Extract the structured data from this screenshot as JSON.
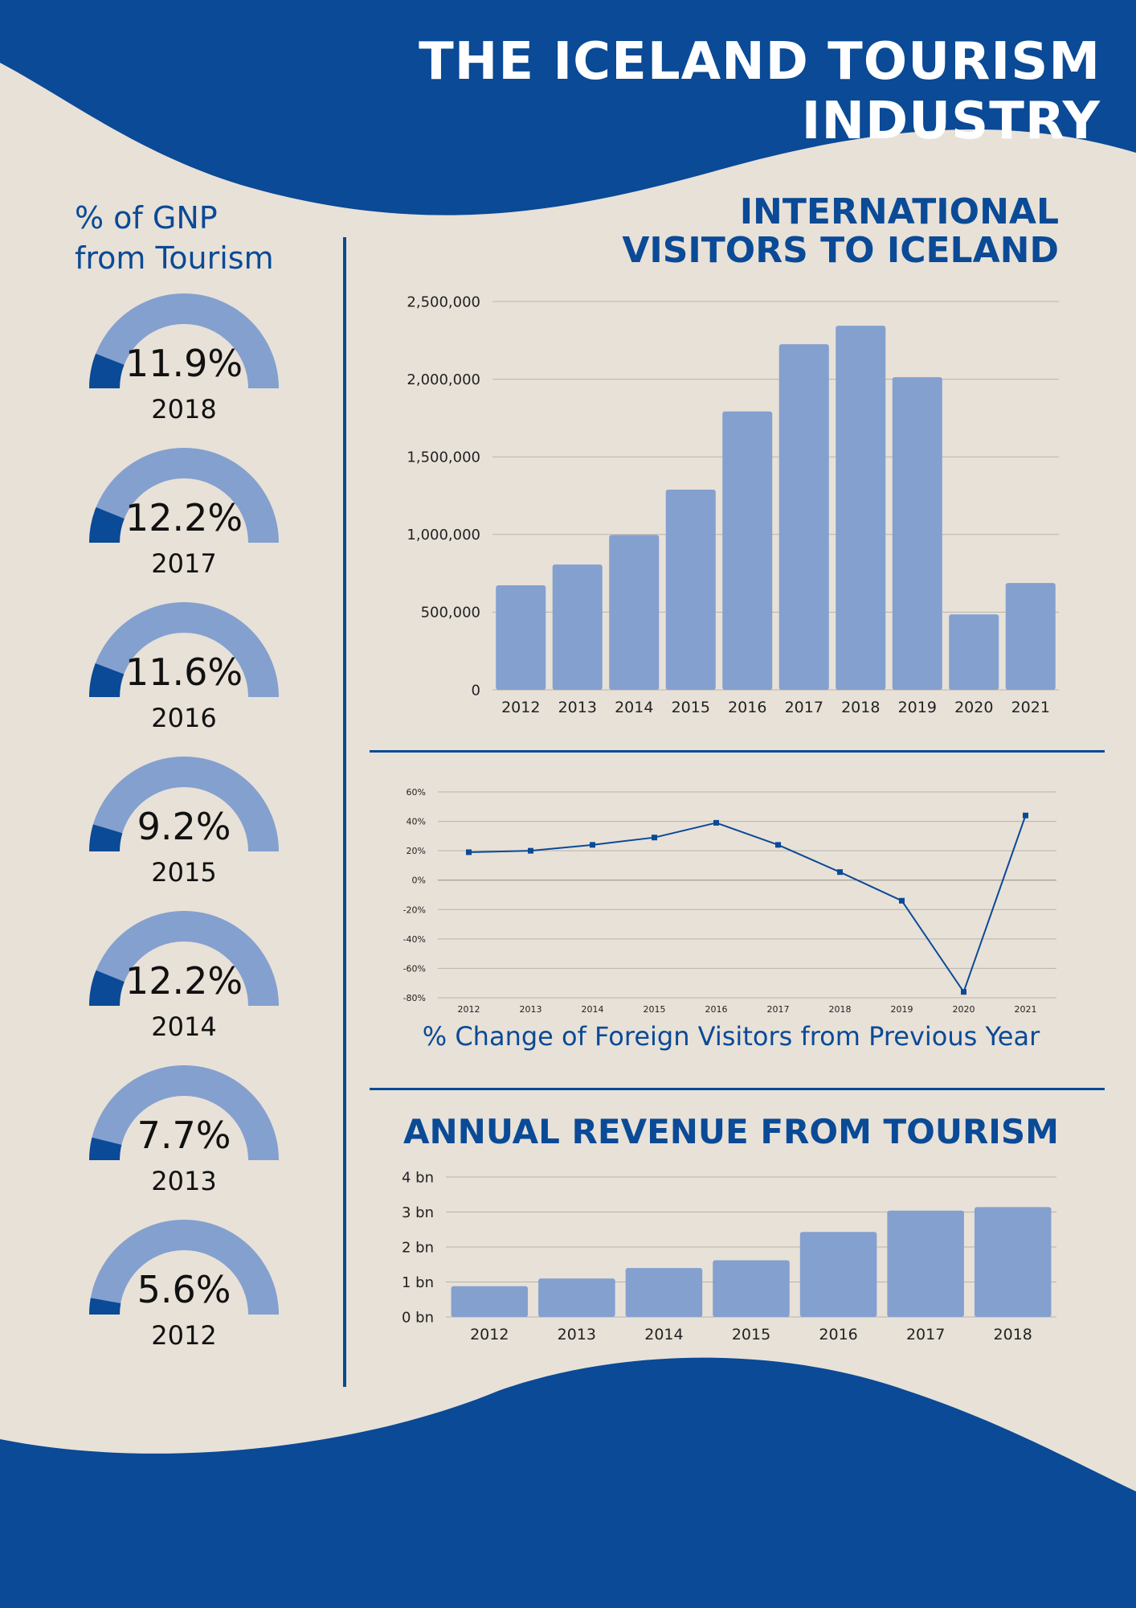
{
  "header": {
    "title": "THE ICELAND TOURISM INDUSTRY"
  },
  "colors": {
    "navy": "#0a4a96",
    "bar": "#84a0cf",
    "background": "#e8e1d8",
    "grid": "#b9b3ab"
  },
  "gnp": {
    "title_line1": "% of GNP",
    "title_line2": "from Tourism",
    "gauges": [
      {
        "year": "2018",
        "label": "11.9%",
        "value": 11.9
      },
      {
        "year": "2017",
        "label": "12.2%",
        "value": 12.2
      },
      {
        "year": "2016",
        "label": "11.6%",
        "value": 11.6
      },
      {
        "year": "2015",
        "label": "9.2%",
        "value": 9.2
      },
      {
        "year": "2014",
        "label": "12.2%",
        "value": 12.2
      },
      {
        "year": "2013",
        "label": "7.7%",
        "value": 7.7
      },
      {
        "year": "2012",
        "label": "5.6%",
        "value": 5.6
      }
    ]
  },
  "visitors": {
    "title_line1": "INTERNATIONAL",
    "title_line2": "VISITORS TO ICELAND"
  },
  "change": {
    "caption": "% Change of Foreign Visitors from Previous Year"
  },
  "revenue": {
    "title": "ANNUAL REVENUE FROM TOURISM"
  },
  "chart_data": [
    {
      "type": "bar",
      "id": "visitors",
      "categories": [
        "2012",
        "2013",
        "2014",
        "2015",
        "2016",
        "2017",
        "2018",
        "2019",
        "2020",
        "2021"
      ],
      "values": [
        673000,
        807000,
        997000,
        1289000,
        1792000,
        2225000,
        2344000,
        2013000,
        486000,
        688000
      ],
      "ylim": [
        0,
        2500000
      ],
      "yticks": [
        0,
        500000,
        1000000,
        1500000,
        2000000,
        2500000
      ],
      "ytick_labels": [
        "0",
        "500,000",
        "1,000,000",
        "1,500,000",
        "2,000,000",
        "2,500,000"
      ],
      "grid": true
    },
    {
      "type": "line",
      "id": "change",
      "categories": [
        "2012",
        "2013",
        "2014",
        "2015",
        "2016",
        "2017",
        "2018",
        "2019",
        "2020",
        "2021"
      ],
      "values": [
        19,
        20,
        24,
        29,
        39,
        24,
        5.5,
        -14,
        -76,
        44
      ],
      "ylim": [
        -80,
        60
      ],
      "yticks": [
        -80,
        -60,
        -40,
        -20,
        0,
        20,
        40,
        60
      ],
      "ytick_labels": [
        "-80%",
        "-60%",
        "-40%",
        "-20%",
        "0%",
        "20%",
        "40%",
        "60%"
      ],
      "grid": true
    },
    {
      "type": "bar",
      "id": "revenue",
      "categories": [
        "2012",
        "2013",
        "2014",
        "2015",
        "2016",
        "2017",
        "2018"
      ],
      "values": [
        0.88,
        1.1,
        1.4,
        1.62,
        2.43,
        3.04,
        3.14
      ],
      "ylim": [
        0,
        4
      ],
      "yticks": [
        0,
        1,
        2,
        3,
        4
      ],
      "ytick_labels": [
        "0 bn",
        "1 bn",
        "2 bn",
        "3 bn",
        "4 bn"
      ],
      "grid": true
    }
  ]
}
